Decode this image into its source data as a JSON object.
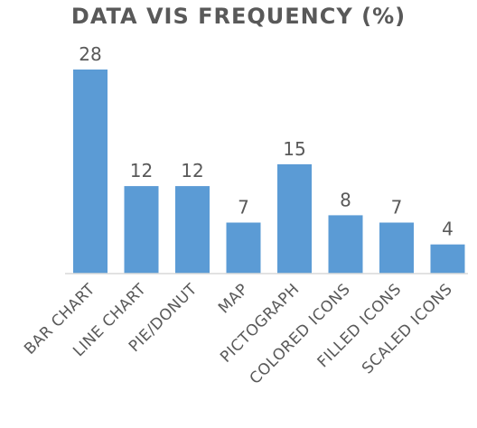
{
  "chart_data": {
    "type": "bar",
    "title": "DATA VIS FREQUENCY (%)",
    "xlabel": "",
    "ylabel": "",
    "categories": [
      "BAR CHART",
      "LINE CHART",
      "PIE/DONUT",
      "MAP",
      "PICTOGRAPH",
      "COLORED ICONS",
      "FILLED ICONS",
      "SCALED ICONS"
    ],
    "values": [
      28,
      12,
      12,
      7,
      15,
      8,
      7,
      4
    ],
    "data_labels": [
      "28",
      "12",
      "12",
      "7",
      "15",
      "8",
      "7",
      "4"
    ],
    "ylim": [
      0,
      28
    ],
    "grid": false,
    "legend": "none",
    "bar_color": "#5b9bd5",
    "text_color": "#595959",
    "axis_color": "#d9d9d9"
  }
}
